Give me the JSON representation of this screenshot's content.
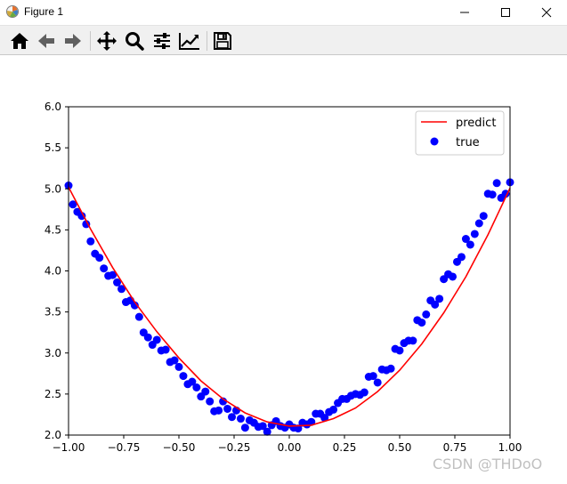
{
  "window": {
    "title": "Figure 1",
    "controls": [
      "minimize-icon",
      "maximize-icon",
      "close-icon"
    ]
  },
  "toolbar": {
    "buttons": [
      {
        "name": "home",
        "icon": "home-icon"
      },
      {
        "name": "back",
        "icon": "arrow-left-icon"
      },
      {
        "name": "forward",
        "icon": "arrow-right-icon"
      },
      {
        "name": "pan",
        "icon": "move-icon"
      },
      {
        "name": "zoom",
        "icon": "magnifier-icon"
      },
      {
        "name": "subplots",
        "icon": "sliders-icon"
      },
      {
        "name": "edit-axis",
        "icon": "line-chart-icon"
      },
      {
        "name": "save",
        "icon": "floppy-disk-icon"
      }
    ]
  },
  "watermark": "CSDN @THDoO",
  "chart_data": {
    "type": "scatter",
    "title": "",
    "xlabel": "",
    "ylabel": "",
    "xlim": [
      -1.0,
      1.0
    ],
    "ylim": [
      2.0,
      6.0
    ],
    "xticks": [
      "−1.00",
      "−0.75",
      "−0.50",
      "−0.25",
      "0.00",
      "0.25",
      "0.50",
      "0.75",
      "1.00"
    ],
    "yticks": [
      "2.0",
      "2.5",
      "3.0",
      "3.5",
      "4.0",
      "4.5",
      "5.0",
      "5.5",
      "6.0"
    ],
    "grid": false,
    "legend_position": "top-right",
    "colors": {
      "predict": "#ff0000",
      "true": "#0000ff"
    },
    "series": [
      {
        "name": "predict",
        "kind": "line",
        "x": [
          -1.0,
          -0.9,
          -0.8,
          -0.7,
          -0.6,
          -0.5,
          -0.4,
          -0.3,
          -0.2,
          -0.1,
          0.0,
          0.1,
          0.2,
          0.3,
          0.4,
          0.5,
          0.6,
          0.7,
          0.8,
          0.9,
          1.0
        ],
        "y": [
          5.02,
          4.51,
          4.04,
          3.62,
          3.26,
          2.94,
          2.66,
          2.44,
          2.27,
          2.16,
          2.11,
          2.12,
          2.2,
          2.33,
          2.53,
          2.79,
          3.11,
          3.49,
          3.93,
          4.44,
          5.01
        ]
      },
      {
        "name": "true",
        "kind": "scatter",
        "x": [
          -1.0,
          -0.98,
          -0.96,
          -0.94,
          -0.92,
          -0.9,
          -0.88,
          -0.86,
          -0.84,
          -0.82,
          -0.8,
          -0.78,
          -0.76,
          -0.74,
          -0.72,
          -0.7,
          -0.68,
          -0.66,
          -0.64,
          -0.62,
          -0.6,
          -0.58,
          -0.56,
          -0.54,
          -0.52,
          -0.5,
          -0.48,
          -0.46,
          -0.44,
          -0.42,
          -0.4,
          -0.38,
          -0.36,
          -0.34,
          -0.32,
          -0.3,
          -0.28,
          -0.26,
          -0.24,
          -0.22,
          -0.2,
          -0.18,
          -0.16,
          -0.14,
          -0.12,
          -0.1,
          -0.08,
          -0.06,
          -0.04,
          -0.02,
          0.0,
          0.02,
          0.04,
          0.06,
          0.08,
          0.1,
          0.12,
          0.14,
          0.16,
          0.18,
          0.2,
          0.22,
          0.24,
          0.26,
          0.28,
          0.3,
          0.32,
          0.34,
          0.36,
          0.38,
          0.4,
          0.42,
          0.44,
          0.46,
          0.48,
          0.5,
          0.52,
          0.54,
          0.56,
          0.58,
          0.6,
          0.62,
          0.64,
          0.66,
          0.68,
          0.7,
          0.72,
          0.74,
          0.76,
          0.78,
          0.8,
          0.82,
          0.84,
          0.86,
          0.88,
          0.9,
          0.92,
          0.94,
          0.96,
          0.98,
          1.0
        ],
        "y": [
          5.04,
          4.81,
          4.72,
          4.67,
          4.57,
          4.36,
          4.21,
          4.16,
          4.03,
          3.94,
          3.95,
          3.86,
          3.78,
          3.62,
          3.64,
          3.58,
          3.44,
          3.25,
          3.19,
          3.1,
          3.16,
          3.03,
          3.04,
          2.89,
          2.91,
          2.83,
          2.72,
          2.62,
          2.65,
          2.58,
          2.47,
          2.53,
          2.41,
          2.29,
          2.3,
          2.41,
          2.32,
          2.22,
          2.3,
          2.2,
          2.09,
          2.18,
          2.15,
          2.1,
          2.11,
          2.04,
          2.12,
          2.17,
          2.11,
          2.09,
          2.13,
          2.09,
          2.08,
          2.15,
          2.13,
          2.16,
          2.26,
          2.26,
          2.21,
          2.28,
          2.31,
          2.39,
          2.44,
          2.44,
          2.48,
          2.5,
          2.49,
          2.52,
          2.71,
          2.72,
          2.64,
          2.8,
          2.79,
          2.81,
          3.05,
          3.03,
          3.12,
          3.15,
          3.15,
          3.4,
          3.37,
          3.47,
          3.64,
          3.59,
          3.66,
          3.9,
          3.96,
          3.93,
          4.11,
          4.17,
          4.39,
          4.32,
          4.45,
          4.58,
          4.67,
          4.94,
          4.93,
          5.07,
          4.89,
          4.94,
          5.08
        ]
      }
    ]
  }
}
